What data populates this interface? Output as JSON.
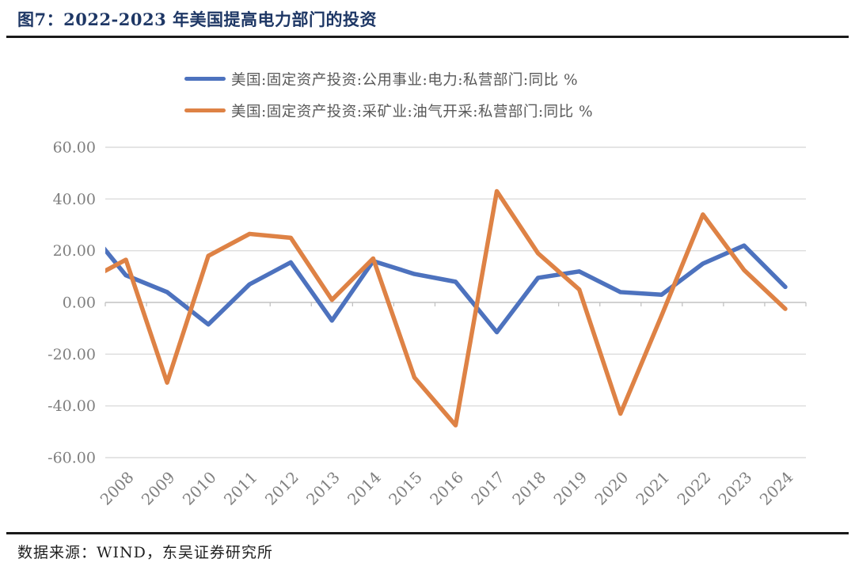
{
  "figure": {
    "title": "图7：2022-2023 年美国提高电力部门的投资",
    "source": "数据来源：WIND，东吴证券研究所"
  },
  "legend": [
    {
      "label": "美国:固定资产投资:公用事业:电力:私营部门:同比 %",
      "color": "#4D72BE"
    },
    {
      "label": "美国:固定资产投资:采矿业:油气开采:私营部门:同比 %",
      "color": "#DE8245"
    }
  ],
  "chart_data": {
    "type": "line",
    "title": "图7：2022-2023 年美国提高电力部门的投资",
    "categories": [
      "2008",
      "2009",
      "2010",
      "2011",
      "2012",
      "2013",
      "2014",
      "2015",
      "2016",
      "2017",
      "2018",
      "2019",
      "2020",
      "2021",
      "2022",
      "2023",
      "2024"
    ],
    "series": [
      {
        "name": "美国:固定资产投资:公用事业:电力:私营部门:同比 %",
        "color": "#4D72BE",
        "values": [
          10.5,
          4,
          -8.5,
          7,
          15.5,
          -7,
          16,
          11,
          8,
          -11.5,
          9.5,
          12,
          4,
          3,
          15,
          22,
          6
        ],
        "clipped_prev_point": {
          "year": "2007",
          "value": 30
        }
      },
      {
        "name": "美国:固定资产投资:采矿业:油气开采:私营部门:同比 %",
        "color": "#DE8245",
        "values": [
          16.5,
          -31,
          18,
          26.5,
          25,
          1,
          17,
          -29,
          -47.5,
          43,
          19,
          5,
          -43,
          -5,
          34,
          12.5,
          -2.5
        ],
        "clipped_prev_point": {
          "year": "2007",
          "value": 8
        }
      }
    ],
    "xlabel": "",
    "ylabel": "",
    "ylim": [
      -60,
      60
    ],
    "ytick_step": 20,
    "ytick_labels": [
      "60.00",
      "40.00",
      "20.00",
      "0.00",
      "-20.00",
      "-40.00",
      "-60.00"
    ],
    "grid": true,
    "legend_position": "top"
  },
  "style": {
    "grid_color": "#DCDCDC",
    "axis_color": "#C2C2C2",
    "axis_text_color": "#7F7F7F",
    "title_color": "#1E3765",
    "legend_text_color": "#595959",
    "rule_color": "#1a1a1a"
  }
}
